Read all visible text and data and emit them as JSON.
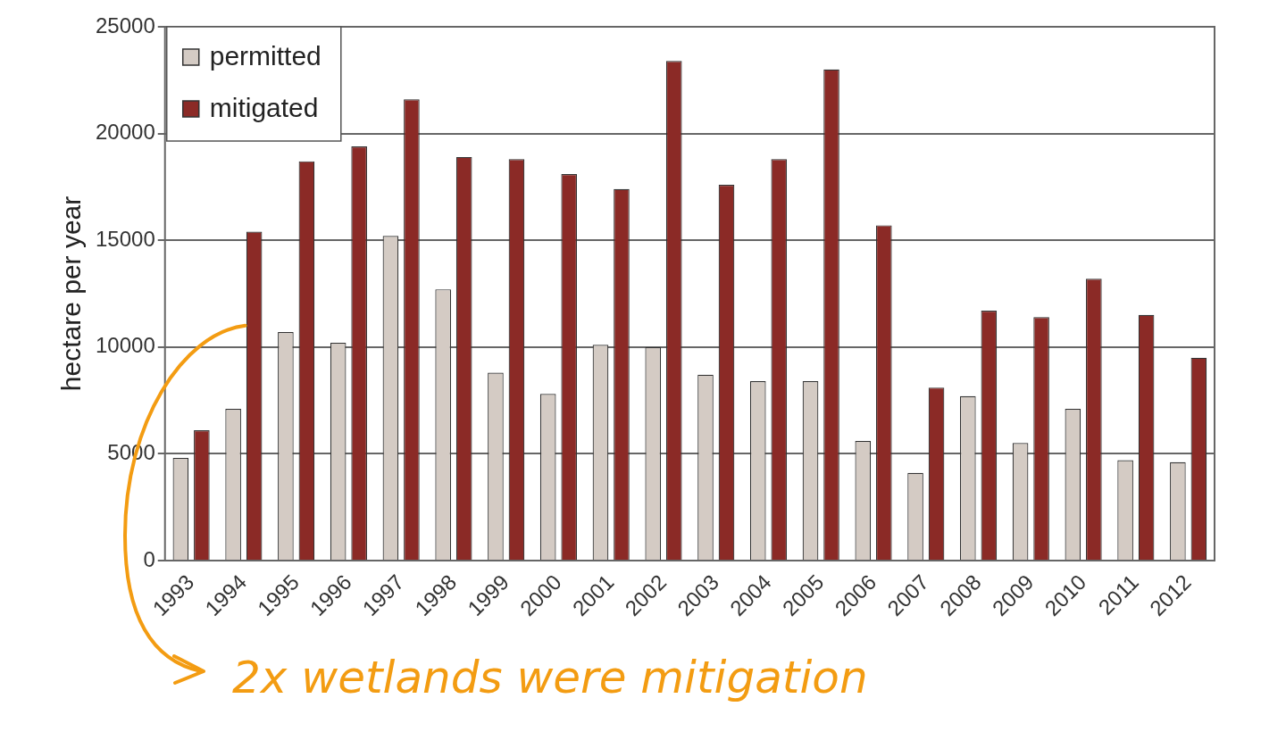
{
  "chart_data": {
    "type": "bar",
    "ylabel": "hectare per year",
    "categories": [
      "1993",
      "1994",
      "1995",
      "1996",
      "1997",
      "1998",
      "1999",
      "2000",
      "2001",
      "2002",
      "2003",
      "2004",
      "2005",
      "2006",
      "2007",
      "2008",
      "2009",
      "2010",
      "2011",
      "2012"
    ],
    "series": [
      {
        "name": "permitted",
        "color": "#d4cbc4",
        "values": [
          4800,
          7100,
          10700,
          10200,
          15200,
          12700,
          8800,
          7800,
          10100,
          10000,
          8700,
          8400,
          8400,
          5600,
          4100,
          7700,
          5500,
          7100,
          4700,
          4600
        ]
      },
      {
        "name": "mitigated",
        "color": "#8b2a26",
        "values": [
          6100,
          15400,
          18700,
          19400,
          21600,
          18900,
          18800,
          18100,
          17400,
          23400,
          17600,
          18800,
          23000,
          15700,
          8100,
          11700,
          11400,
          13200,
          11500,
          9500
        ]
      }
    ],
    "ylim": [
      0,
      25000
    ],
    "yticks": [
      0,
      5000,
      10000,
      15000,
      20000,
      25000
    ],
    "grid": "y",
    "legend": "top left",
    "annotations": [
      {
        "text": "2x wetlands were mitigation",
        "x": "1994",
        "y": 11000
      }
    ]
  }
}
